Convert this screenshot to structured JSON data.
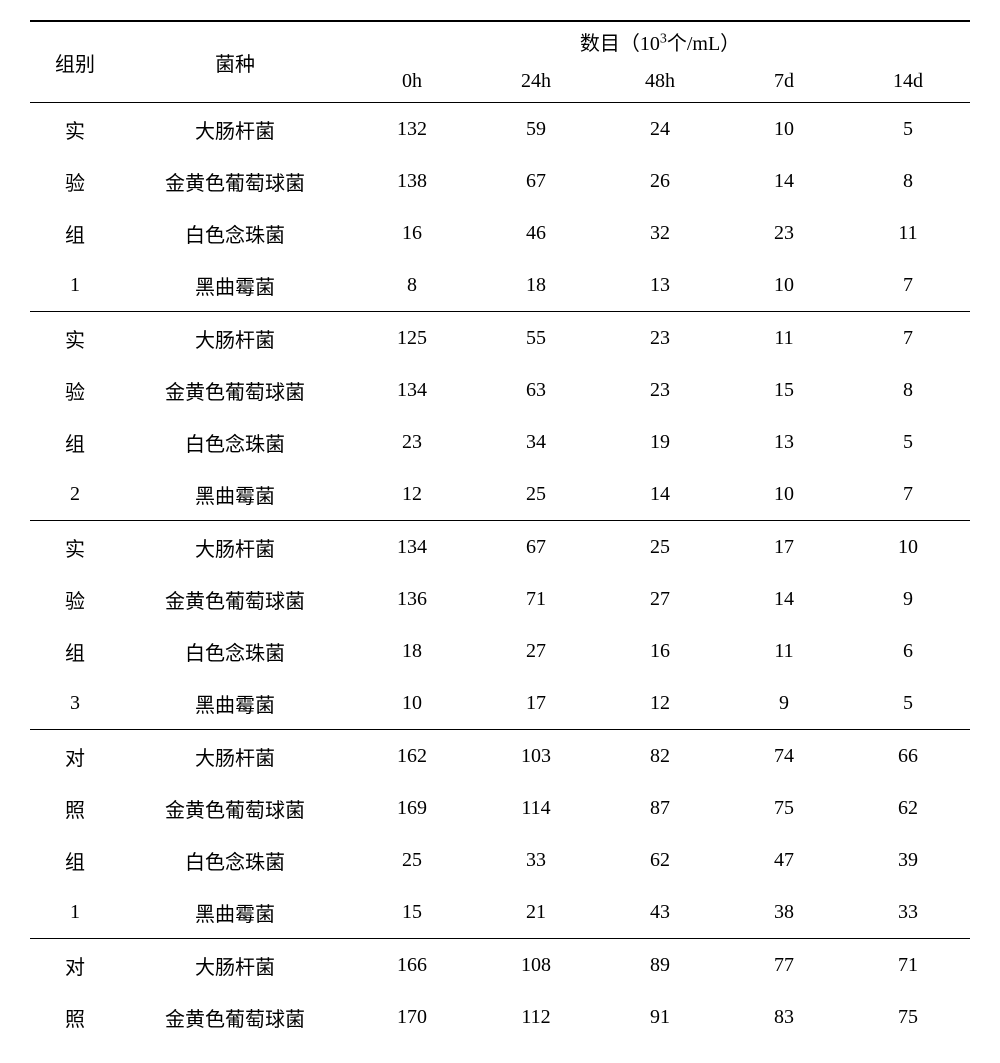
{
  "header": {
    "group": "组别",
    "species": "菌种",
    "count_label": "数目（10",
    "count_sup": "3",
    "count_unit": "个/mL）",
    "times": [
      "0h",
      "24h",
      "48h",
      "7d",
      "14d"
    ]
  },
  "groups": [
    {
      "label_chars": [
        "实",
        "验",
        "组",
        "1"
      ],
      "rows": [
        {
          "species": "大肠杆菌",
          "vals": [
            "132",
            "59",
            "24",
            "10",
            "5"
          ]
        },
        {
          "species": "金黄色葡萄球菌",
          "vals": [
            "138",
            "67",
            "26",
            "14",
            "8"
          ]
        },
        {
          "species": "白色念珠菌",
          "vals": [
            "16",
            "46",
            "32",
            "23",
            "11"
          ]
        },
        {
          "species": "黑曲霉菌",
          "vals": [
            "8",
            "18",
            "13",
            "10",
            "7"
          ]
        }
      ]
    },
    {
      "label_chars": [
        "实",
        "验",
        "组",
        "2"
      ],
      "rows": [
        {
          "species": "大肠杆菌",
          "vals": [
            "125",
            "55",
            "23",
            "11",
            "7"
          ]
        },
        {
          "species": "金黄色葡萄球菌",
          "vals": [
            "134",
            "63",
            "23",
            "15",
            "8"
          ]
        },
        {
          "species": "白色念珠菌",
          "vals": [
            "23",
            "34",
            "19",
            "13",
            "5"
          ]
        },
        {
          "species": "黑曲霉菌",
          "vals": [
            "12",
            "25",
            "14",
            "10",
            "7"
          ]
        }
      ]
    },
    {
      "label_chars": [
        "实",
        "验",
        "组",
        "3"
      ],
      "rows": [
        {
          "species": "大肠杆菌",
          "vals": [
            "134",
            "67",
            "25",
            "17",
            "10"
          ]
        },
        {
          "species": "金黄色葡萄球菌",
          "vals": [
            "136",
            "71",
            "27",
            "14",
            "9"
          ]
        },
        {
          "species": "白色念珠菌",
          "vals": [
            "18",
            "27",
            "16",
            "11",
            "6"
          ]
        },
        {
          "species": "黑曲霉菌",
          "vals": [
            "10",
            "17",
            "12",
            "9",
            "5"
          ]
        }
      ]
    },
    {
      "label_chars": [
        "对",
        "照",
        "组",
        "1"
      ],
      "rows": [
        {
          "species": "大肠杆菌",
          "vals": [
            "162",
            "103",
            "82",
            "74",
            "66"
          ]
        },
        {
          "species": "金黄色葡萄球菌",
          "vals": [
            "169",
            "114",
            "87",
            "75",
            "62"
          ]
        },
        {
          "species": "白色念珠菌",
          "vals": [
            "25",
            "33",
            "62",
            "47",
            "39"
          ]
        },
        {
          "species": "黑曲霉菌",
          "vals": [
            "15",
            "21",
            "43",
            "38",
            "33"
          ]
        }
      ]
    },
    {
      "label_chars": [
        "对",
        "照"
      ],
      "rows": [
        {
          "species": "大肠杆菌",
          "vals": [
            "166",
            "108",
            "89",
            "77",
            "71"
          ]
        },
        {
          "species": "金黄色葡萄球菌",
          "vals": [
            "170",
            "112",
            "91",
            "83",
            "75"
          ]
        }
      ]
    }
  ]
}
